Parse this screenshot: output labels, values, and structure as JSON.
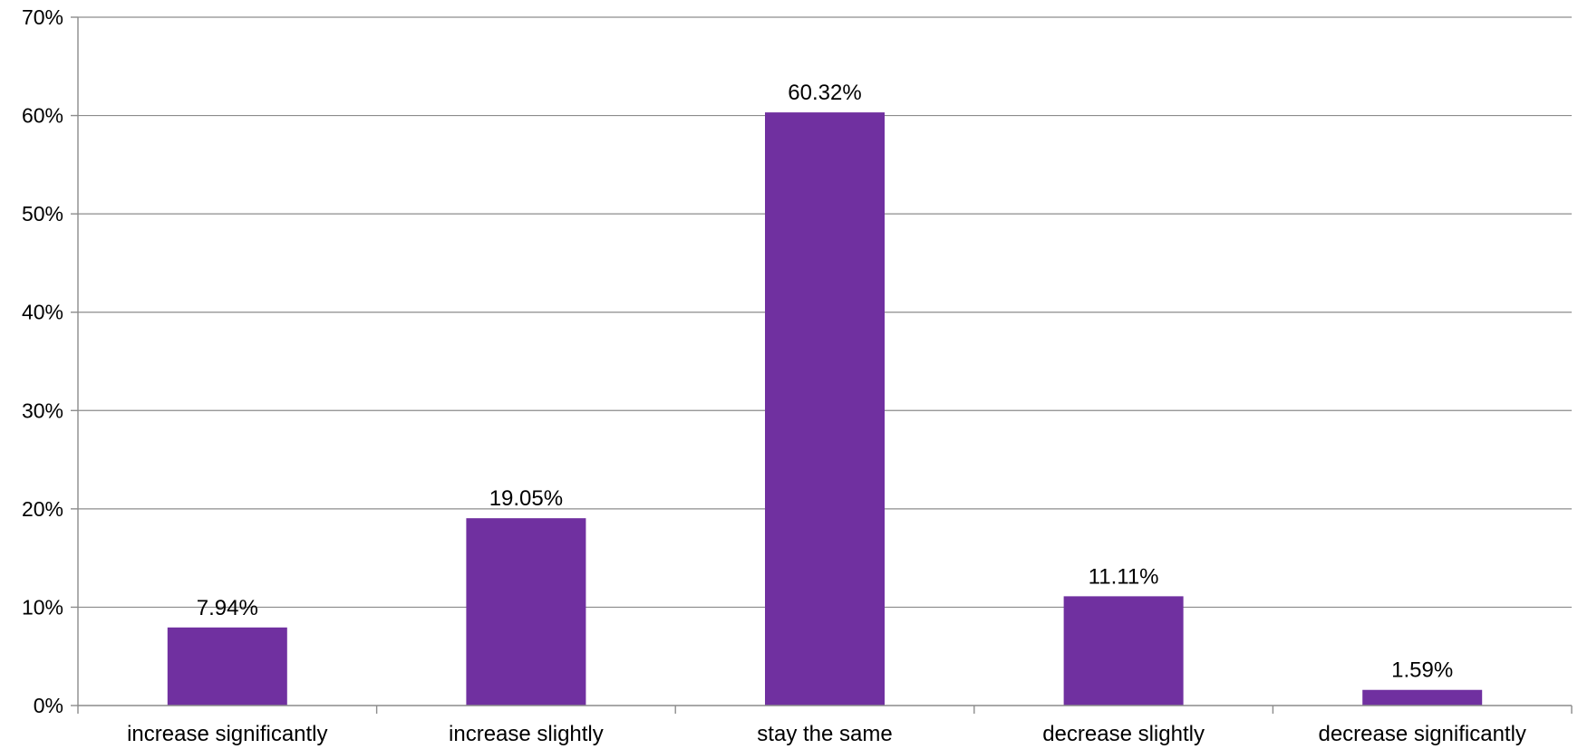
{
  "chart_data": {
    "type": "bar",
    "title": "",
    "xlabel": "",
    "ylabel": "",
    "categories": [
      "increase significantly",
      "increase slightly",
      "stay the same",
      "decrease slightly",
      "decrease significantly"
    ],
    "values": [
      7.94,
      19.05,
      60.32,
      11.11,
      1.59
    ],
    "data_labels": [
      "7.94%",
      "19.05%",
      "60.32%",
      "11.11%",
      "1.59%"
    ],
    "ylim": [
      0,
      70
    ],
    "yticks": [
      0,
      10,
      20,
      30,
      40,
      50,
      60,
      70
    ],
    "ytick_labels": [
      "0%",
      "10%",
      "20%",
      "30%",
      "40%",
      "50%",
      "60%",
      "70%"
    ],
    "grid": true,
    "legend": "none",
    "bar_color": "#7030A0"
  }
}
